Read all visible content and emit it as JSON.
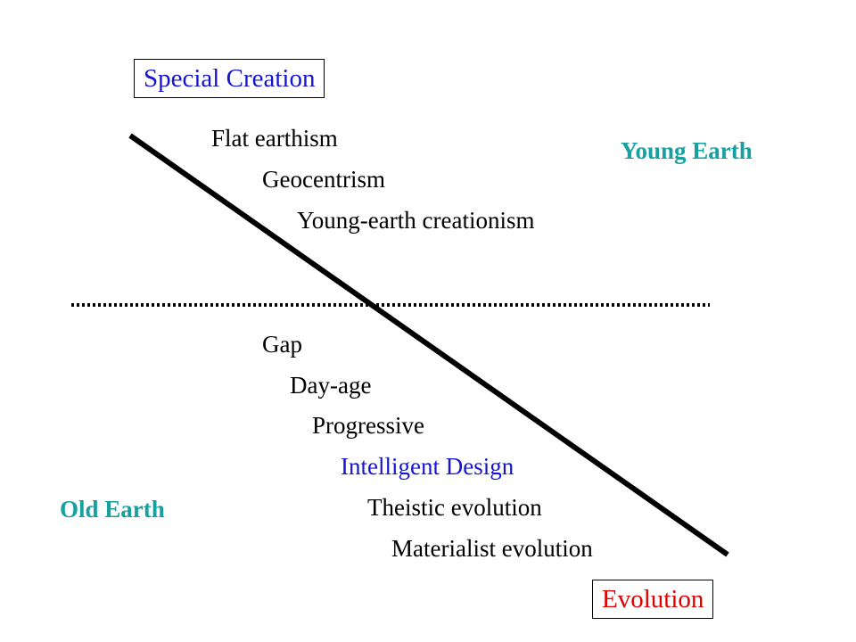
{
  "poles": {
    "top": "Special Creation",
    "bottom": "Evolution"
  },
  "regions": {
    "young_earth": "Young Earth",
    "old_earth": "Old Earth"
  },
  "young_earth_views": [
    "Flat earthism",
    "Geocentrism",
    "Young-earth creationism"
  ],
  "old_earth_views": [
    "Gap",
    "Day-age",
    "Progressive",
    "Intelligent Design",
    "Theistic evolution",
    "Materialist evolution"
  ],
  "colors": {
    "special_creation": "#1515d0",
    "evolution": "#e00000",
    "region": "#16a0a0",
    "intelligent_design": "#1515d0",
    "text": "#000000"
  }
}
